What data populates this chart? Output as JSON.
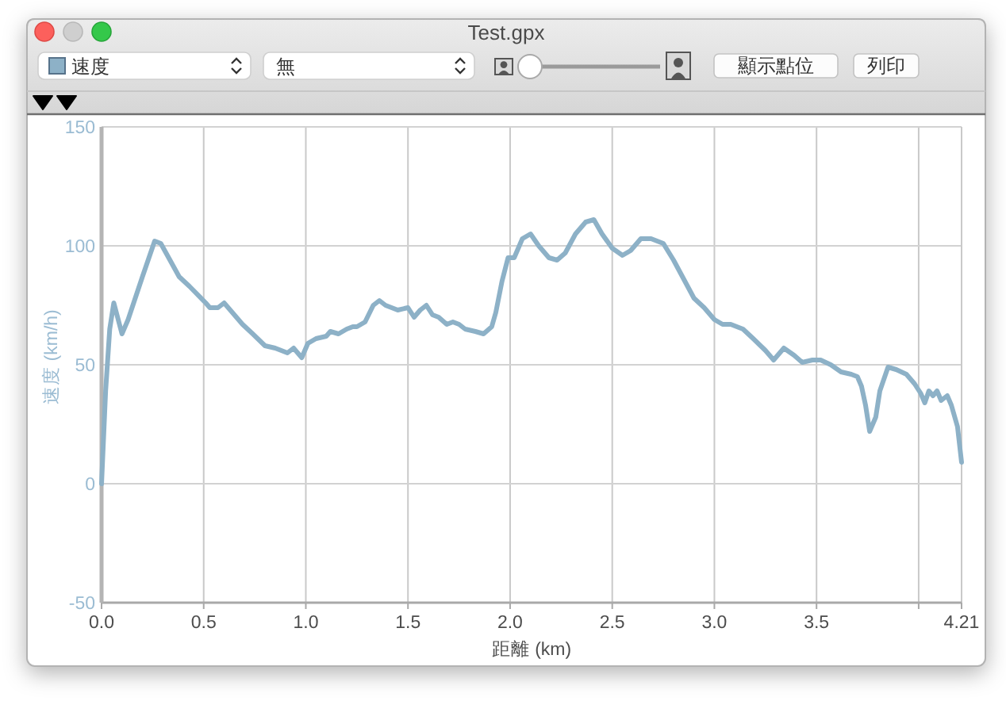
{
  "chart_data": {
    "type": "line",
    "title": "Test.gpx",
    "xlabel": "距離 (km)",
    "ylabel": "速度 (km/h)",
    "annotations": [
      "無",
      "顯示點位",
      "列印"
    ],
    "legend": "top left",
    "grid": true,
    "line_style": "solid",
    "xlim": [
      0,
      4.21
    ],
    "ylim": [
      -50,
      150
    ],
    "xticks": [
      {
        "value": 0,
        "label": "0.0"
      },
      0.5,
      {
        "value": 1,
        "label": "1.0"
      },
      1.5,
      {
        "value": 2,
        "label": "2.0"
      },
      2.5,
      {
        "value": 3,
        "label": "3.0"
      },
      3.5,
      {
        "value": 4,
        "label": null
      },
      4.21
    ],
    "yticks": [
      -50,
      0,
      50,
      100,
      150
    ],
    "x": [
      0.0,
      0.02,
      0.04,
      0.06,
      0.1,
      0.13,
      0.2,
      0.26,
      0.29,
      0.38,
      0.43,
      0.51,
      0.53,
      0.57,
      0.6,
      0.63,
      0.69,
      0.74,
      0.8,
      0.85,
      0.91,
      0.94,
      0.98,
      1.01,
      1.05,
      1.1,
      1.12,
      1.16,
      1.2,
      1.23,
      1.25,
      1.29,
      1.33,
      1.36,
      1.39,
      1.45,
      1.5,
      1.53,
      1.56,
      1.59,
      1.62,
      1.65,
      1.69,
      1.72,
      1.75,
      1.78,
      1.83,
      1.87,
      1.91,
      1.93,
      1.96,
      1.99,
      2.02,
      2.06,
      2.1,
      2.14,
      2.19,
      2.23,
      2.27,
      2.32,
      2.37,
      2.41,
      2.45,
      2.5,
      2.55,
      2.59,
      2.64,
      2.69,
      2.75,
      2.8,
      2.85,
      2.9,
      2.95,
      3.0,
      3.04,
      3.08,
      3.14,
      3.19,
      3.25,
      3.29,
      3.34,
      3.39,
      3.43,
      3.48,
      3.52,
      3.57,
      3.62,
      3.67,
      3.7,
      3.72,
      3.74,
      3.76,
      3.79,
      3.81,
      3.85,
      3.89,
      3.94,
      3.98,
      4.01,
      4.03,
      4.05,
      4.07,
      4.09,
      4.11,
      4.14,
      4.16,
      4.19,
      4.21
    ],
    "series": [
      {
        "name": "速度",
        "color": "#8db1c7",
        "values": [
          0,
          39,
          65,
          76,
          63,
          69,
          87,
          102,
          101,
          87,
          83,
          76,
          74,
          74,
          76,
          73,
          67,
          63,
          58,
          57,
          55,
          57,
          53,
          59,
          61,
          62,
          64,
          63,
          65,
          66,
          66,
          68,
          75,
          77,
          75,
          73,
          74,
          70,
          73,
          75,
          71,
          70,
          67,
          68,
          67,
          65,
          64,
          63,
          66,
          72,
          85,
          95,
          95,
          103,
          105,
          100,
          95,
          94,
          97,
          105,
          110,
          111,
          105,
          99,
          96,
          98,
          103,
          103,
          101,
          94,
          86,
          78,
          74,
          69,
          67,
          67,
          65,
          61,
          56,
          52,
          57,
          54,
          51,
          52,
          52,
          50,
          47,
          46,
          45,
          41,
          33,
          22,
          28,
          39,
          49,
          48,
          46,
          42,
          38,
          34,
          39,
          37,
          39,
          35,
          37,
          33,
          24,
          9
        ]
      }
    ]
  }
}
